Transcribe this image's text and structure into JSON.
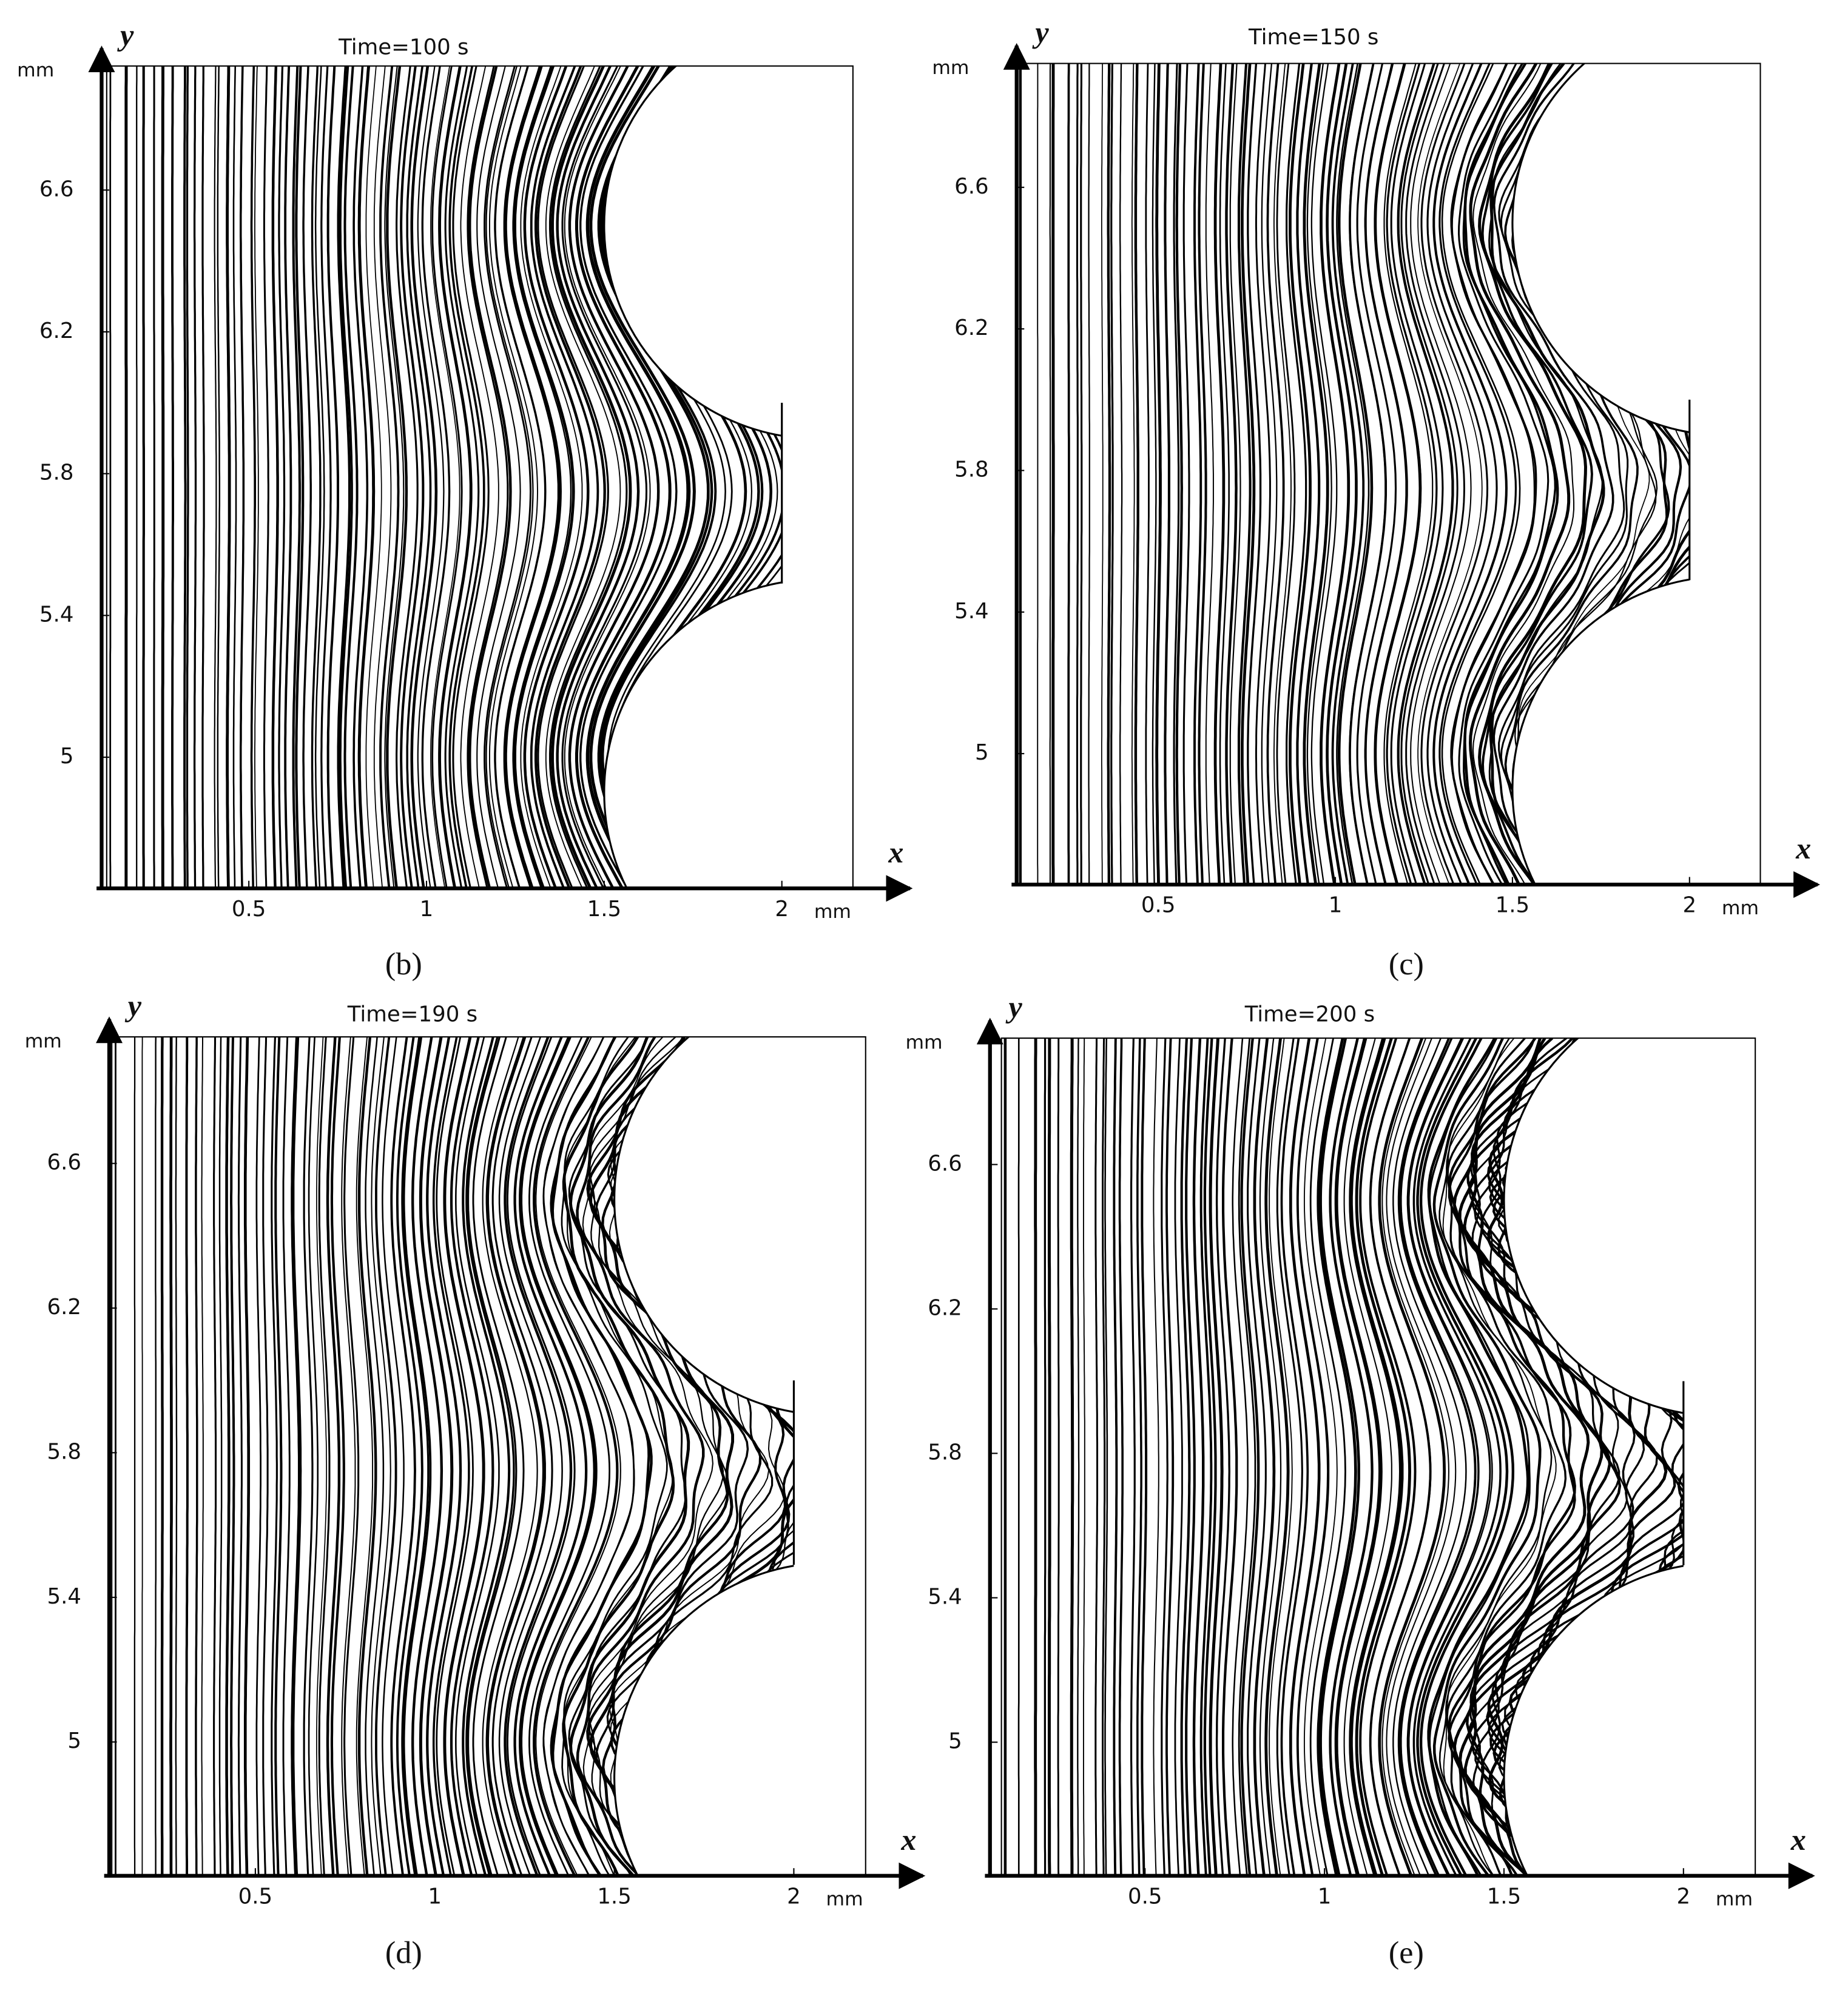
{
  "chart_data": [
    {
      "type": "streamline",
      "title": "Time=100 s",
      "panel_label": "(b)",
      "x_label": "x",
      "y_label": "y",
      "x_unit": "mm",
      "y_unit": "mm",
      "xlim": [
        0.1,
        2.2
      ],
      "ylim": [
        4.63,
        6.95
      ],
      "xticks": [
        0.5,
        1,
        1.5,
        2
      ],
      "yticks": [
        5,
        5.4,
        5.8,
        6.2,
        6.6
      ]
    },
    {
      "type": "streamline",
      "title": "Time=150 s",
      "panel_label": "(c)",
      "x_label": "x",
      "y_label": "y",
      "x_unit": "mm",
      "y_unit": "mm",
      "xlim": [
        0.1,
        2.2
      ],
      "ylim": [
        4.63,
        6.95
      ],
      "xticks": [
        0.5,
        1,
        1.5,
        2
      ],
      "yticks": [
        5,
        5.4,
        5.8,
        6.2,
        6.6
      ]
    },
    {
      "type": "streamline",
      "title": "Time=190 s",
      "panel_label": "(d)",
      "x_label": "x",
      "y_label": "y",
      "x_unit": "mm",
      "y_unit": "mm",
      "xlim": [
        0.1,
        2.2
      ],
      "ylim": [
        4.63,
        6.95
      ],
      "xticks": [
        0.5,
        1,
        1.5,
        2
      ],
      "yticks": [
        5,
        5.4,
        5.8,
        6.2,
        6.6
      ]
    },
    {
      "type": "streamline",
      "title": "Time=200 s",
      "panel_label": "(e)",
      "x_label": "x",
      "y_label": "y",
      "x_unit": "mm",
      "y_unit": "mm",
      "xlim": [
        0.1,
        2.2
      ],
      "ylim": [
        4.63,
        6.95
      ],
      "xticks": [
        0.5,
        1,
        1.5,
        2
      ],
      "yticks": [
        5,
        5.4,
        5.8,
        6.2,
        6.6
      ]
    }
  ]
}
